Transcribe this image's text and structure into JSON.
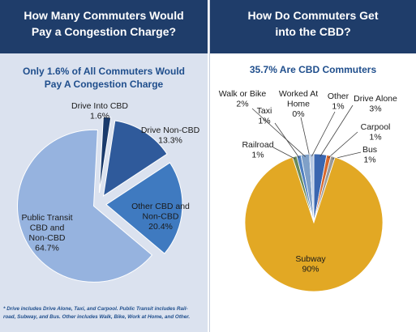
{
  "left": {
    "header_line1": "How Many Commuters Would",
    "header_line2": "Pay a Congestion Charge?",
    "subtitle_line1": "Only 1.6% of All Commuters Would",
    "subtitle_line2": "Pay A Congestion Charge",
    "footnote_line1": "* Drive includes Drive Alone, Taxi, and Carpool.  Public Transit includes Rail-",
    "footnote_line2": "road, Subway, and Bus.  Other includes Walk, Bike, Work at Home, and Other."
  },
  "right": {
    "header_line1": "How Do Commuters Get",
    "header_line2": "into the CBD?",
    "subtitle": "35.7% Are CBD Commuters"
  },
  "chart_data": [
    {
      "type": "pie",
      "title": "Only 1.6% of All Commuters Would Pay A Congestion Charge",
      "exploded": true,
      "slices": [
        {
          "label_lines": [
            "Drive Into  CBD",
            "1.6%"
          ],
          "value": 1.6,
          "color": "#1a3a6b"
        },
        {
          "label_lines": [
            "Drive Non-CBD",
            "13.3%"
          ],
          "value": 13.3,
          "color": "#2f5a9b"
        },
        {
          "label_lines": [
            "Other CBD and",
            "Non-CBD",
            "20.4%"
          ],
          "value": 20.4,
          "color": "#3f7ac0"
        },
        {
          "label_lines": [
            "Public Transit",
            "CBD and",
            "Non-CBD",
            "64.7%"
          ],
          "value": 64.7,
          "color": "#96b3df"
        }
      ]
    },
    {
      "type": "pie",
      "title": "35.7% Are CBD Commuters",
      "slices": [
        {
          "label_lines": [
            "Drive Alone",
            "3%"
          ],
          "value": 3,
          "color": "#3a66b0"
        },
        {
          "label_lines": [
            "Carpool",
            "1%"
          ],
          "value": 1,
          "color": "#d9682b"
        },
        {
          "label_lines": [
            "Bus",
            "1%"
          ],
          "value": 1,
          "color": "#9a9a9a"
        },
        {
          "label_lines": [
            "Subway",
            "90%"
          ],
          "value": 90,
          "color": "#e2a824"
        },
        {
          "label_lines": [
            "Railroad",
            "1%"
          ],
          "value": 1,
          "color": "#6a8a5a"
        },
        {
          "label_lines": [
            "Taxi",
            "1%"
          ],
          "value": 1,
          "color": "#4f7fc0"
        },
        {
          "label_lines": [
            "Walk or Bike",
            "2%"
          ],
          "value": 2,
          "color": "#7fa0c8"
        },
        {
          "label_lines": [
            "Worked At",
            "Home",
            "0%"
          ],
          "value": 0,
          "color": "#aab8c8"
        },
        {
          "label_lines": [
            "Other",
            "1%"
          ],
          "value": 1,
          "color": "#b5c7e2"
        }
      ]
    }
  ]
}
